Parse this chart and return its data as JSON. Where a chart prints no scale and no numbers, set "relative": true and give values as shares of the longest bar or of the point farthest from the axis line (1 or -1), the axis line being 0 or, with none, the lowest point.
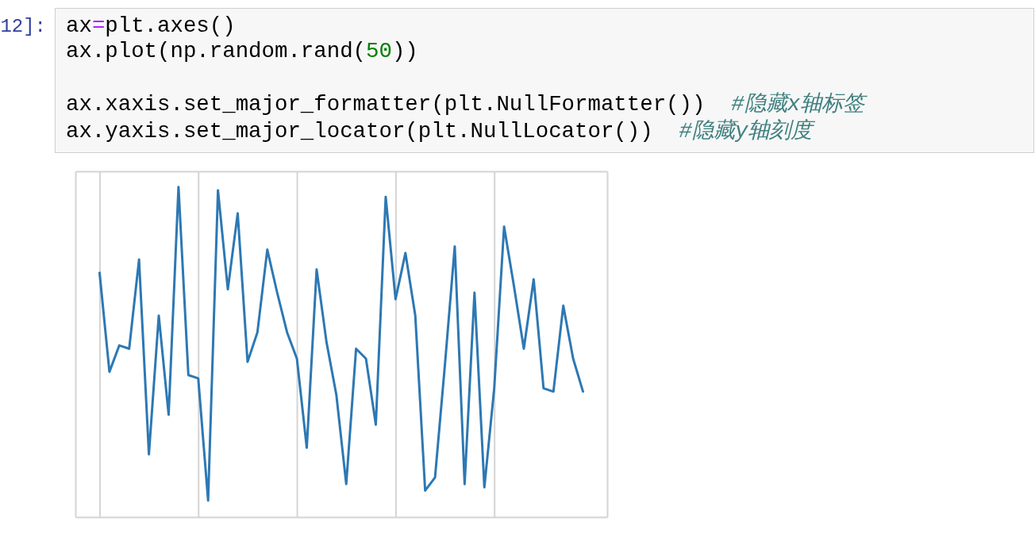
{
  "chart_data": {
    "type": "line",
    "annotations": [
      "12]:",
      "ax=plt.axes()",
      "ax.plot(np.random.rand(50))",
      "ax.xaxis.set_major_formatter(plt.NullFormatter())  #隐藏x轴标签",
      "ax.yaxis.set_major_locator(plt.NullLocator())  #隐藏y轴刻度"
    ],
    "categories": [
      null,
      null,
      null,
      null,
      null,
      null,
      null,
      null,
      null,
      null,
      null,
      null,
      null,
      null,
      null,
      null,
      null,
      null,
      null,
      null,
      null,
      null,
      null,
      null,
      null,
      null,
      null,
      null,
      null,
      null,
      null,
      null,
      null,
      null,
      null,
      null,
      null,
      null,
      null,
      null,
      null,
      null,
      null,
      null,
      null,
      null,
      null,
      null,
      null,
      null
    ],
    "series": [
      {
        "color": "#2d78b3",
        "values": [
          0.74,
          0.44,
          0.52,
          0.51,
          0.78,
          0.19,
          0.61,
          0.31,
          1,
          0.43,
          0.42,
          0.05,
          0.99,
          0.69,
          0.92,
          0.47,
          0.56,
          0.81,
          0.68,
          0.56,
          0.48,
          0.21,
          0.75,
          0.53,
          0.37,
          0.1,
          0.51,
          0.48,
          0.28,
          0.97,
          0.66,
          0.8,
          0.61,
          0.08,
          0.12,
          0.46,
          0.82,
          0.1,
          0.68,
          0.09,
          0.39,
          0.88,
          0.7,
          0.51,
          0.72,
          0.39,
          0.38,
          0.64,
          0.48,
          0.38
        ]
      }
    ],
    "relative": true,
    "grid": "x"
  }
}
